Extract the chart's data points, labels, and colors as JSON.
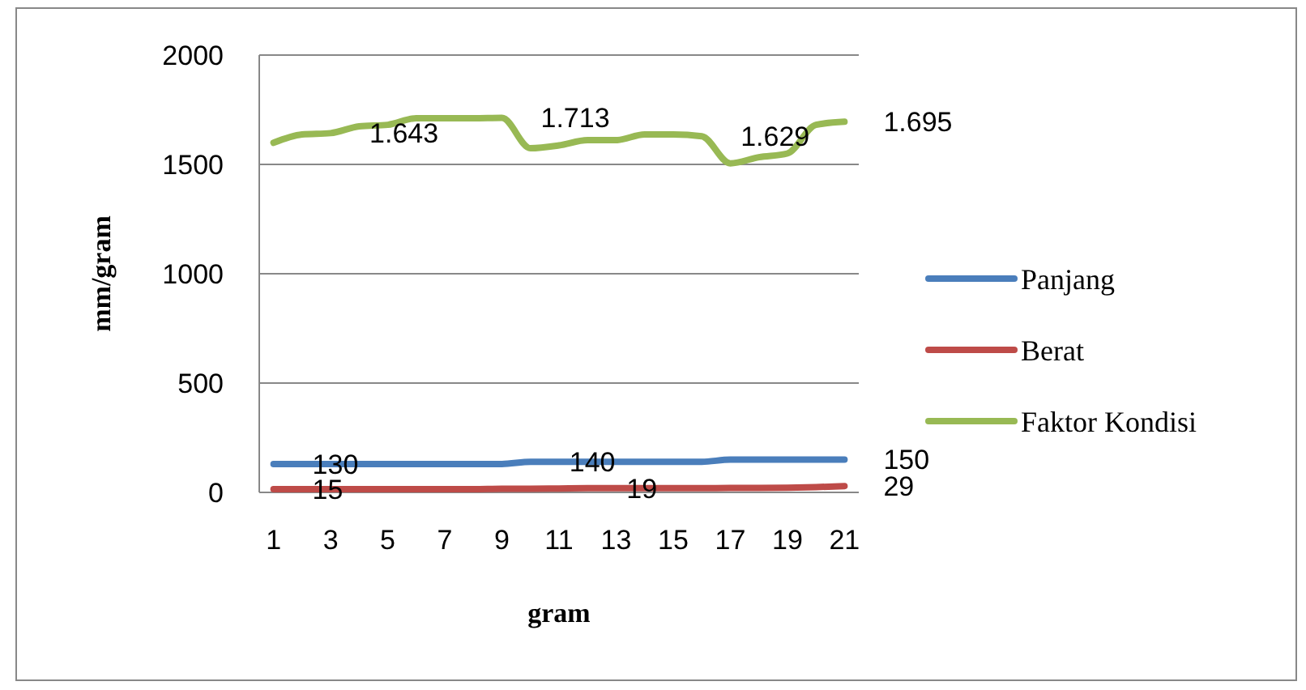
{
  "chart_data": {
    "type": "line",
    "xlabel": "gram",
    "ylabel": "mm/gram",
    "x": [
      1,
      2,
      3,
      4,
      5,
      6,
      7,
      8,
      9,
      10,
      11,
      12,
      13,
      14,
      15,
      16,
      17,
      18,
      19,
      20,
      21
    ],
    "xlim": [
      0.5,
      21.5
    ],
    "xticks": [
      1,
      3,
      5,
      7,
      9,
      11,
      13,
      15,
      17,
      19,
      21
    ],
    "ylim": [
      0,
      2000
    ],
    "yticks": [
      0,
      500,
      1000,
      1500,
      2000
    ],
    "grid": "y",
    "legend": "right",
    "series": [
      {
        "name": "Panjang",
        "color": "#4a7ebb",
        "values": [
          130,
          130,
          130,
          130,
          130,
          130,
          130,
          130,
          130,
          140,
          140,
          140,
          140,
          140,
          140,
          140,
          150,
          150,
          150,
          150,
          150
        ],
        "value_labels": [
          "130",
          null,
          null,
          null,
          null,
          null,
          null,
          null,
          null,
          "140",
          null,
          null,
          null,
          null,
          null,
          null,
          null,
          null,
          null,
          null,
          "150"
        ]
      },
      {
        "name": "Berat",
        "color": "#be4b48",
        "values": [
          15,
          15,
          15,
          15,
          15,
          15,
          15,
          15,
          17,
          17,
          18,
          19,
          19,
          19,
          19,
          19,
          20,
          20,
          21,
          24,
          29
        ],
        "value_labels": [
          "15",
          null,
          null,
          null,
          null,
          null,
          null,
          null,
          null,
          null,
          null,
          "19",
          null,
          null,
          null,
          null,
          null,
          null,
          null,
          null,
          "29"
        ]
      },
      {
        "name": "Faktor Kondisi",
        "color": "#98b954",
        "values": [
          1599,
          1637,
          1643,
          1674,
          1681,
          1711,
          1711,
          1711,
          1713,
          1574,
          1587,
          1611,
          1611,
          1637,
          1637,
          1629,
          1505,
          1533,
          1550,
          1681,
          1695
        ],
        "value_labels": [
          null,
          null,
          "1.643",
          null,
          null,
          null,
          null,
          null,
          "1.713",
          null,
          null,
          null,
          null,
          null,
          null,
          "1.629",
          null,
          null,
          null,
          null,
          "1.695"
        ]
      }
    ]
  }
}
